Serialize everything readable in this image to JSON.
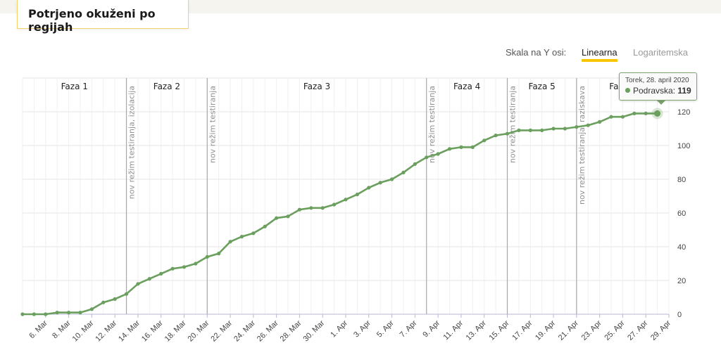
{
  "header": {
    "title": "Potrjeno okuženi po regijah"
  },
  "scale": {
    "label": "Skala na Y osi:",
    "options": [
      "Linearna",
      "Logaritemska"
    ],
    "selected": "Linearna"
  },
  "tooltip": {
    "date": "Torek, 28. april 2020",
    "series": "Podravska",
    "value": "119"
  },
  "colors": {
    "line": "#6a9f5e",
    "grid": "#e6e6e6",
    "phase_line": "#a8a8a8",
    "accent": "#f7c600"
  },
  "chart_data": {
    "type": "line",
    "series": [
      {
        "name": "Podravska",
        "values": [
          0,
          0,
          0,
          1,
          1,
          1,
          3,
          7,
          9,
          12,
          18,
          21,
          24,
          27,
          28,
          30,
          34,
          36,
          43,
          46,
          48,
          52,
          57,
          58,
          62,
          63,
          63,
          65,
          68,
          71,
          75,
          78,
          80,
          84,
          89,
          93,
          95,
          98,
          99,
          99,
          103,
          106,
          107,
          109,
          109,
          109,
          110,
          110,
          111,
          112,
          114,
          117,
          117,
          119,
          119,
          119
        ]
      }
    ],
    "x_start_day": 4,
    "x_tick_labels": [
      "6. Mar",
      "8. Mar",
      "10. Mar",
      "12. Mar",
      "14. Mar",
      "16. Mar",
      "18. Mar",
      "20. Mar",
      "22. Mar",
      "24. Mar",
      "26. Mar",
      "28. Mar",
      "30. Mar",
      "1. Apr",
      "3. Apr",
      "5. Apr",
      "7. Apr",
      "9. Apr",
      "11. Apr",
      "13. Apr",
      "15. Apr",
      "17. Apr",
      "19. Apr",
      "21. Apr",
      "23. Apr",
      "25. Apr",
      "27. Apr",
      "29. Apr"
    ],
    "y_ticks": [
      0,
      20,
      40,
      60,
      80,
      100,
      120
    ],
    "y_partial_top_label": "140",
    "ylim": [
      0,
      140
    ],
    "phases": [
      {
        "label": "Faza 1",
        "start": 4,
        "end": 13
      },
      {
        "label": "Faza 2",
        "start": 13,
        "end": 20
      },
      {
        "label": "Faza 3",
        "start": 20,
        "end": 39
      },
      {
        "label": "Faza 4",
        "start": 39,
        "end": 46
      },
      {
        "label": "Faza 5",
        "start": 46,
        "end": 52
      },
      {
        "label": "Faza 6",
        "start": 52,
        "end": 60
      }
    ],
    "phase_lines": [
      {
        "day": 13,
        "label": "nov režim testiranja, izolacija"
      },
      {
        "day": 20,
        "label": "nov režim testiranja"
      },
      {
        "day": 39,
        "label": "nov režim testiranja"
      },
      {
        "day": 46,
        "label": "nov režim testiranja"
      },
      {
        "day": 52,
        "label": "nov režim testiranja, raziskava"
      }
    ],
    "highlight_index": 55,
    "grid": true
  }
}
